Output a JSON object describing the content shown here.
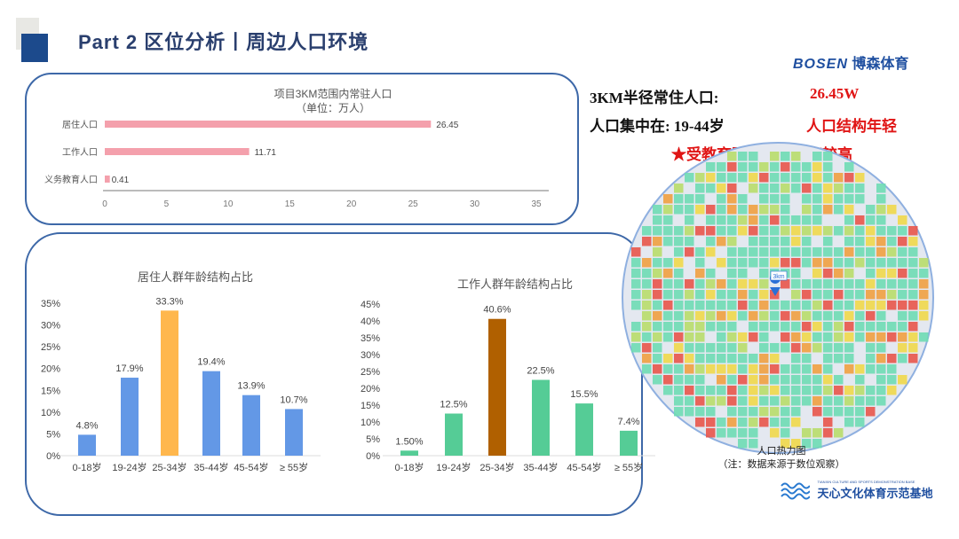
{
  "header": {
    "title": "Part 2 区位分析丨周边人口环境"
  },
  "logo": {
    "brand": "BOSEN",
    "brand_cn": "博森体育",
    "brand_sub": "SPORTS MANAGEMENT"
  },
  "stats": {
    "resident_label": "3KM半径常住人口:",
    "resident_value": "26.45W",
    "age_label": "人口集中在:  19-44岁",
    "age_note": "人口结构年轻",
    "education_note": "★受教育阶段人口比率较高"
  },
  "heatmap": {
    "caption": "人口热力图",
    "note": "（注：数据来源于数位观察）",
    "marker": "3km",
    "colors": {
      "low": "#6edbb4",
      "mid": "#b8dd6a",
      "midhigh": "#f0d84a",
      "high": "#f0a040",
      "top": "#e8554a"
    }
  },
  "footer_logo": {
    "name": "天心文化体育示范基地",
    "sub": "TIANXIN CULTURE AND SPORTS DEMONSTRATION BASE"
  },
  "chart_data": [
    {
      "type": "bar",
      "orientation": "horizontal",
      "title": "项目3KM范围内常驻人口",
      "subtitle": "（单位：万人）",
      "categories": [
        "居住人口",
        "工作人口",
        "义务教育人口"
      ],
      "values": [
        26.45,
        11.71,
        0.41
      ],
      "labels": [
        "26.45",
        "11.71",
        "0.41"
      ],
      "xlim": [
        0,
        35
      ],
      "xticks": [
        "0",
        "5",
        "10",
        "15",
        "20",
        "25",
        "30",
        "35"
      ],
      "color": "#f4a0ac"
    },
    {
      "type": "bar",
      "title": "居住人群年龄结构占比",
      "categories": [
        "0-18岁",
        "19-24岁",
        "25-34岁",
        "35-44岁",
        "45-54岁",
        "≥ 55岁"
      ],
      "values": [
        4.8,
        17.9,
        33.3,
        19.4,
        13.9,
        10.7
      ],
      "labels": [
        "4.8%",
        "17.9%",
        "33.3%",
        "19.4%",
        "13.9%",
        "10.7%"
      ],
      "ylim": [
        0,
        35
      ],
      "yticks": [
        "0%",
        "5%",
        "10%",
        "15%",
        "20%",
        "25%",
        "30%",
        "35%"
      ],
      "color": "#6398e6",
      "highlight_color": "#ffb74d",
      "highlight_index": 2
    },
    {
      "type": "bar",
      "title": "工作人群年龄结构占比",
      "categories": [
        "0-18岁",
        "19-24岁",
        "25-34岁",
        "35-44岁",
        "45-54岁",
        "≥ 55岁"
      ],
      "values": [
        1.5,
        12.5,
        40.6,
        22.5,
        15.5,
        7.4
      ],
      "labels": [
        "1.50%",
        "12.5%",
        "40.6%",
        "22.5%",
        "15.5%",
        "7.4%"
      ],
      "ylim": [
        0,
        45
      ],
      "yticks": [
        "0%",
        "5%",
        "10%",
        "15%",
        "20%",
        "25%",
        "30%",
        "35%",
        "40%",
        "45%"
      ],
      "color": "#55cc96",
      "highlight_color": "#b06000",
      "highlight_index": 2
    }
  ]
}
